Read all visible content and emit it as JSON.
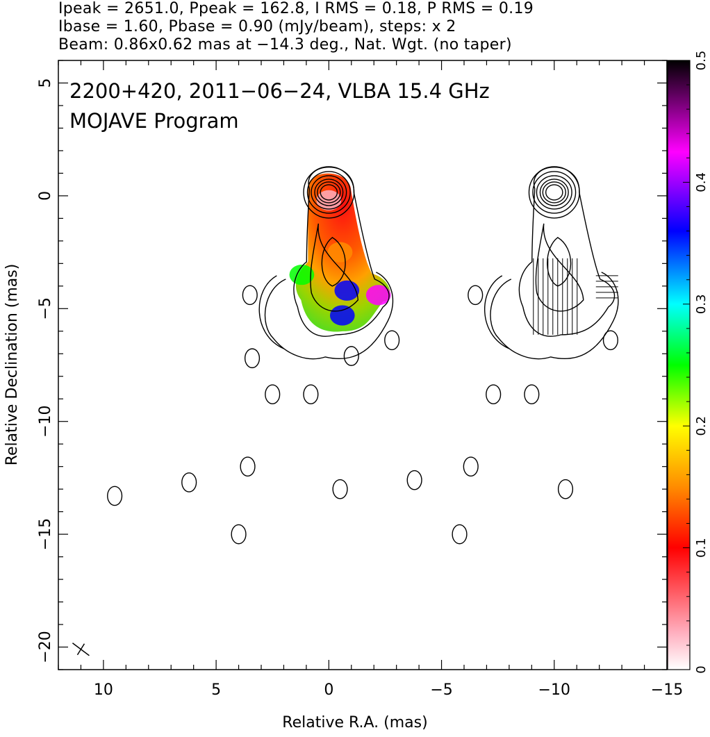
{
  "header": {
    "line1": "Ipeak = 2651.0, Ppeak = 162.8, I RMS = 0.18, P RMS = 0.19",
    "line2": "Ibase = 1.60, Pbase = 0.90 (mJy/beam), steps: x 2",
    "line3": "Beam: 0.86x0.62 mas at −14.3 deg., Nat. Wgt. (no taper)"
  },
  "chart_data": {
    "type": "heatmap",
    "title": "2200+420, 2011−06−24, VLBA 15.4 GHz",
    "subtitle": "MOJAVE Program",
    "xlabel": "Relative R.A. (mas)",
    "ylabel": "Relative Declination (mas)",
    "xlim": [
      12,
      -15
    ],
    "ylim": [
      -21,
      6
    ],
    "x_ticks": [
      10,
      5,
      0,
      -5,
      -10,
      -15
    ],
    "x_tick_labels": [
      "10",
      "5",
      "0",
      "−5",
      "−10",
      "−15"
    ],
    "y_ticks": [
      5,
      0,
      -5,
      -10,
      -15,
      -20
    ],
    "y_tick_labels": [
      "5",
      "0",
      "−5",
      "−10",
      "−15",
      "−20"
    ],
    "colorbar": {
      "range": [
        0,
        0.5
      ],
      "ticks": [
        0,
        0.1,
        0.2,
        0.3,
        0.4,
        0.5
      ],
      "tick_labels": [
        "0",
        "0.1",
        "0.2",
        "0.3",
        "0.4",
        "0.5"
      ],
      "colormap": [
        "#ffffff",
        "#ff0000",
        "#ff8800",
        "#ffff00",
        "#00ff00",
        "#00ffff",
        "#0000ff",
        "#ff00ff",
        "#000000"
      ]
    },
    "image_core": {
      "x": 0.0,
      "y": 0.0
    },
    "polarization_image_center_x": -10.0,
    "jet_blobs_mas": [
      {
        "x": 0.0,
        "y": -0.2,
        "value": 0.08
      },
      {
        "x": -0.5,
        "y": -2.5,
        "value": 0.18
      },
      {
        "x": -0.8,
        "y": -4.2,
        "value": 0.38
      },
      {
        "x": -0.6,
        "y": -5.3,
        "value": 0.42
      },
      {
        "x": 1.2,
        "y": -3.5,
        "value": 0.25
      },
      {
        "x": -2.2,
        "y": -4.4,
        "value": 0.46
      }
    ],
    "contour_islands_mas": [
      {
        "x": 3.4,
        "y": -7.2
      },
      {
        "x": 2.5,
        "y": -8.8
      },
      {
        "x": 0.8,
        "y": -8.8
      },
      {
        "x": -1.0,
        "y": -7.1
      },
      {
        "x": -2.8,
        "y": -6.4
      },
      {
        "x": 3.5,
        "y": -4.4
      },
      {
        "x": 6.2,
        "y": -12.7
      },
      {
        "x": 3.6,
        "y": -12.0
      },
      {
        "x": -0.5,
        "y": -13.0
      },
      {
        "x": -3.8,
        "y": -12.6
      },
      {
        "x": 4.0,
        "y": -15.0
      },
      {
        "x": 9.5,
        "y": -13.3
      },
      {
        "x": -6.3,
        "y": -12.0
      },
      {
        "x": -5.8,
        "y": -15.0
      },
      {
        "x": -7.3,
        "y": -8.8
      },
      {
        "x": -9.0,
        "y": -8.8
      },
      {
        "x": -6.5,
        "y": -4.4
      },
      {
        "x": -10.5,
        "y": -13.0
      },
      {
        "x": -12.5,
        "y": -6.4
      }
    ]
  },
  "colors": {
    "axis": "#000000",
    "background": "#ffffff"
  }
}
